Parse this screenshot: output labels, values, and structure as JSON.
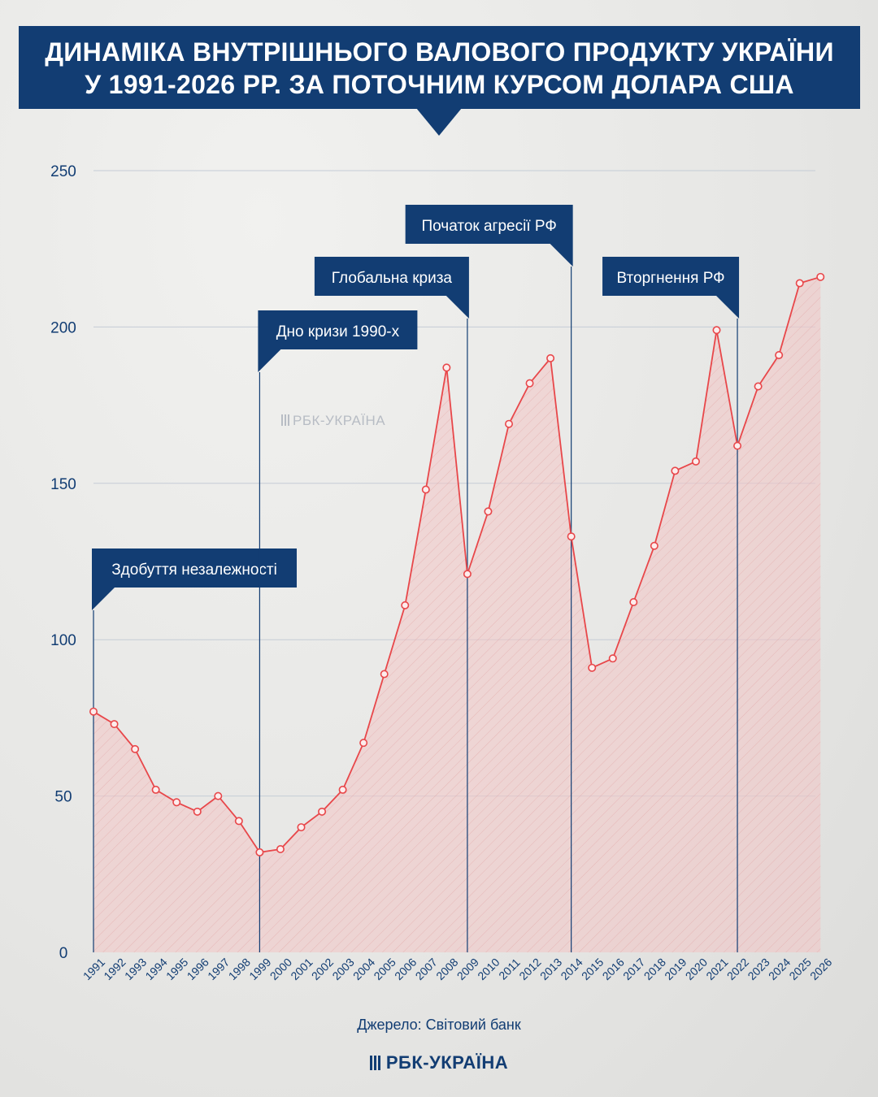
{
  "title_line1": "ДИНАМІКА ВНУТРІШНЬОГО ВАЛОВОГО ПРОДУКТУ УКРАЇНИ",
  "title_line2": "У 1991-2026 РР. ЗА ПОТОЧНИМ КУРСОМ ДОЛАРА США",
  "source": "Джерело: Світовий банк",
  "logo": "РБК-УКРАЇНА",
  "watermark": "РБК-УКРАЇНА",
  "colors": {
    "accent": "#123d73",
    "line": "#e8474a",
    "area": "#f2c4c4",
    "grid": "#c5ccd6"
  },
  "chart_data": {
    "type": "area",
    "x": [
      "1991",
      "1992",
      "1993",
      "1994",
      "1995",
      "1996",
      "1997",
      "1998",
      "1999",
      "2000",
      "2001",
      "2002",
      "2003",
      "2004",
      "2005",
      "2006",
      "2007",
      "2008",
      "2009",
      "2010",
      "2011",
      "2012",
      "2013",
      "2014",
      "2015",
      "2016",
      "2017",
      "2018",
      "2019",
      "2020",
      "2021",
      "2022",
      "2023",
      "2024",
      "2025",
      "2026"
    ],
    "values": [
      77,
      73,
      65,
      52,
      48,
      45,
      50,
      42,
      32,
      33,
      40,
      45,
      52,
      67,
      89,
      111,
      148,
      187,
      121,
      141,
      169,
      182,
      190,
      133,
      91,
      94,
      112,
      130,
      154,
      157,
      199,
      162,
      181,
      191,
      214,
      216
    ],
    "ylim": [
      0,
      250
    ],
    "yticks": [
      "0",
      "50",
      "100",
      "150",
      "200",
      "250"
    ],
    "grid": true,
    "annotations": [
      {
        "label": "Здобуття незалежності",
        "year": "1991"
      },
      {
        "label": "Дно кризи 1990-х",
        "year": "1999"
      },
      {
        "label": "Глобальна криза",
        "year": "2009"
      },
      {
        "label": "Початок агресії РФ",
        "year": "2014"
      },
      {
        "label": "Вторгнення РФ",
        "year": "2022"
      }
    ]
  }
}
